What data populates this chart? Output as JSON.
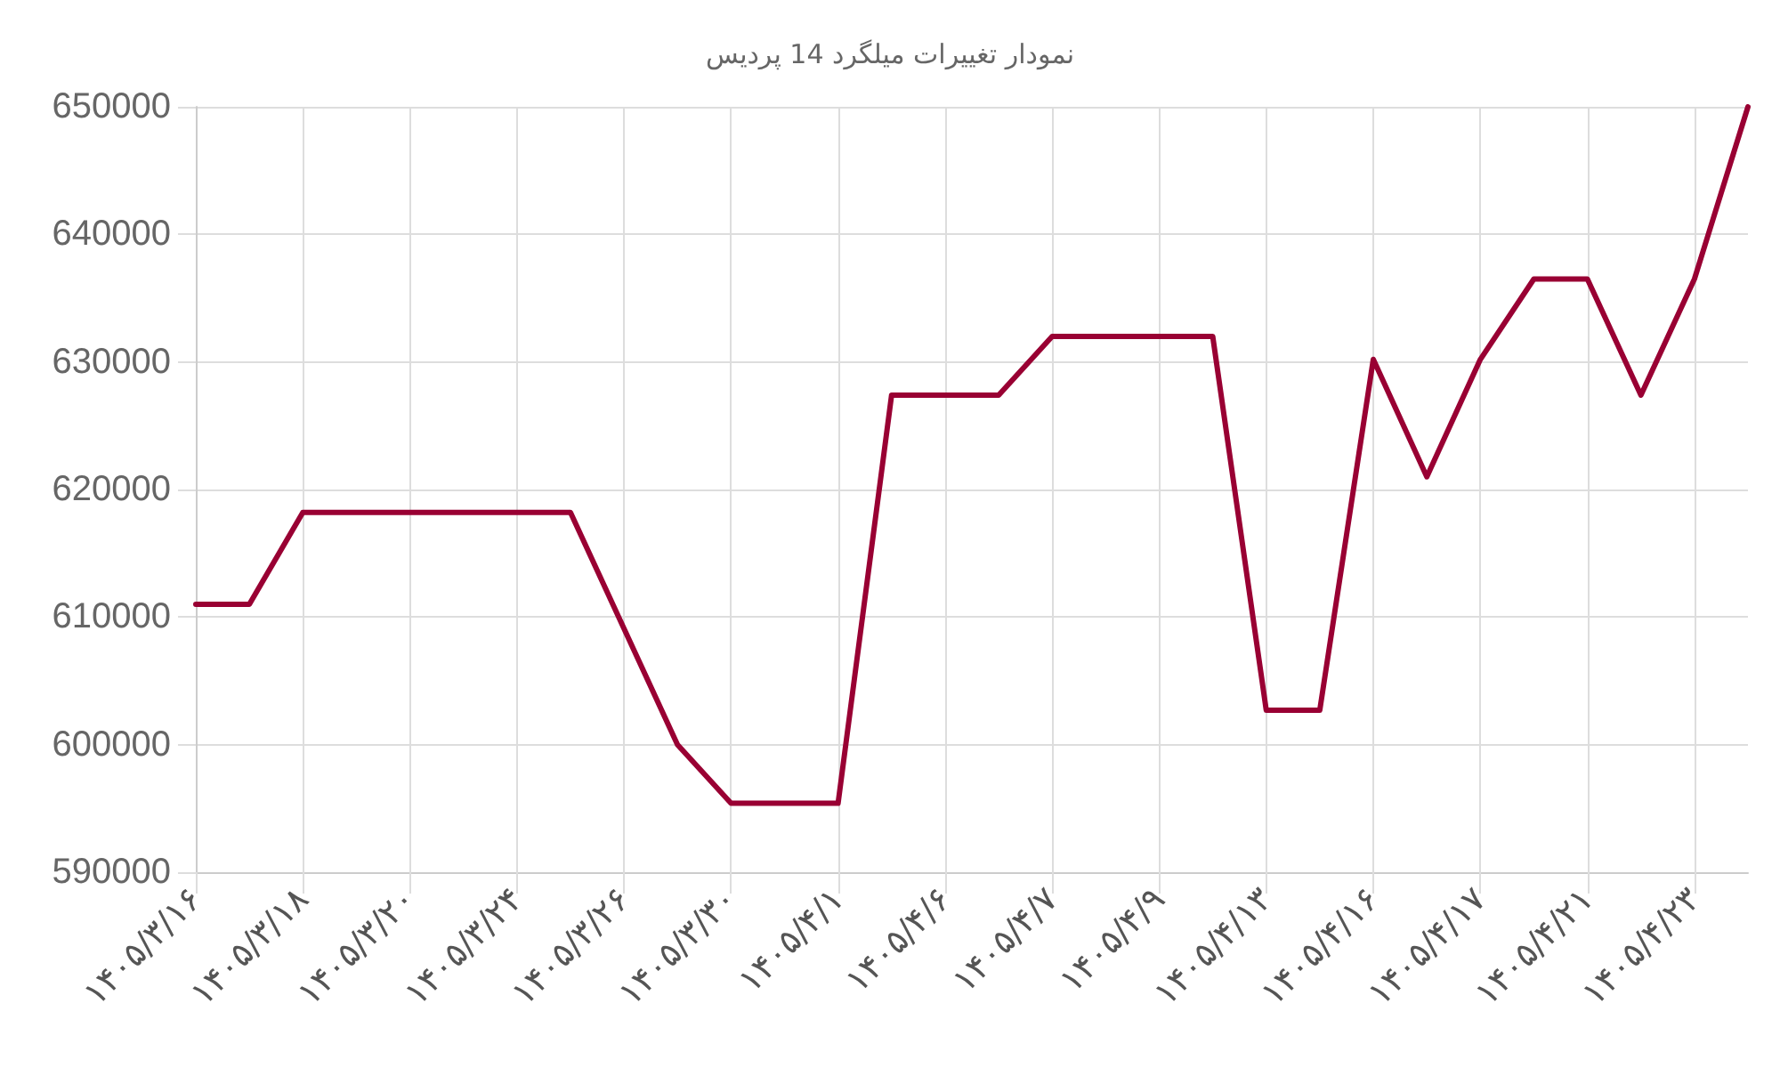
{
  "chart_data": {
    "type": "line",
    "title": "نمودار تغییرات میلگرد 14 پردیس",
    "categories": [
      "۱۴۰۵/۳/۱۶",
      null,
      "۱۴۰۵/۳/۱۸",
      null,
      "۱۴۰۵/۳/۲۰",
      null,
      "۱۴۰۵/۳/۲۴",
      null,
      "۱۴۰۵/۳/۲۶",
      null,
      "۱۴۰۵/۳/۳۰",
      null,
      "۱۴۰۵/۴/۱",
      null,
      "۱۴۰۵/۴/۶",
      null,
      "۱۴۰۵/۴/۷",
      null,
      "۱۴۰۵/۴/۹",
      null,
      "۱۴۰۵/۴/۱۳",
      null,
      "۱۴۰۵/۴/۱۶",
      null,
      "۱۴۰۵/۴/۱۷",
      null,
      "۱۴۰۵/۴/۲۱",
      null,
      "۱۴۰۵/۴/۲۳",
      null
    ],
    "series": [
      {
        "color": "#990033",
        "values": [
          611000,
          611000,
          618200,
          618200,
          618200,
          618200,
          618200,
          618200,
          609100,
          600000,
          595400,
          595400,
          595400,
          627400,
          627400,
          627400,
          632000,
          632000,
          632000,
          632000,
          602700,
          602700,
          630200,
          621000,
          630200,
          636500,
          636500,
          627400,
          636500,
          650000
        ]
      }
    ],
    "ylim": [
      590000,
      650000
    ],
    "yticks": [
      590000,
      600000,
      610000,
      620000,
      630000,
      640000,
      650000
    ],
    "grid": true,
    "marker": "none",
    "line_style": "solid"
  }
}
